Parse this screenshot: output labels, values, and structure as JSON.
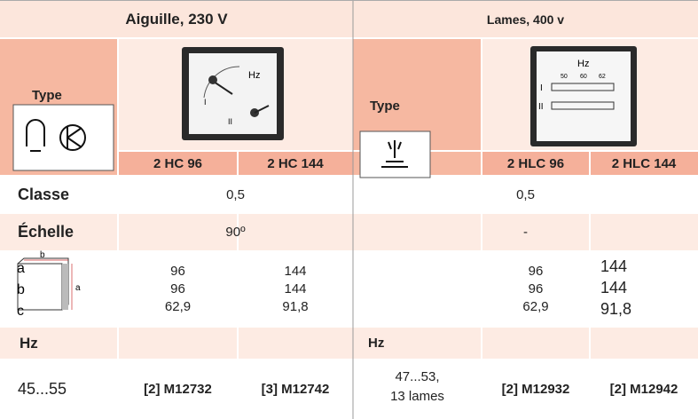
{
  "sections": [
    {
      "title": "Aiguille, 230 V",
      "type_label": "Type",
      "models": [
        "2 HC 96",
        "2 HC 144"
      ],
      "meter": {
        "unit": "Hz",
        "marks": [
          "I",
          "II"
        ]
      }
    },
    {
      "title": "Lames, 400 v",
      "type_label": "Type",
      "models": [
        "2 HLC 96",
        "2 HLC 144"
      ],
      "meter": {
        "unit": "Hz",
        "marks": [
          "I",
          "II"
        ],
        "scale": [
          "50",
          "60",
          "62"
        ]
      }
    }
  ],
  "rows": {
    "classe": {
      "label": "Classe",
      "left": "0,5",
      "right": "0,5"
    },
    "echelle": {
      "label": "Échelle",
      "left": "90º",
      "right": "-"
    },
    "dimensions": {
      "labels": [
        "a",
        "b",
        "c"
      ],
      "icon_labels": [
        "b",
        "a"
      ],
      "cols": [
        [
          "96",
          "96",
          "62,9"
        ],
        [
          "144",
          "144",
          "91,8"
        ],
        [
          "96",
          "96",
          "62,9"
        ],
        [
          "144",
          "144",
          "91,8"
        ]
      ]
    },
    "frequency": {
      "label_left": "Hz",
      "label_right": "Hz",
      "range_left": "45...55",
      "range_right": [
        "47...53,",
        "13 lames"
      ],
      "refs": [
        "[2] M12732",
        "[3] M12742",
        "[2] M12932",
        "[2] M12942"
      ]
    }
  }
}
